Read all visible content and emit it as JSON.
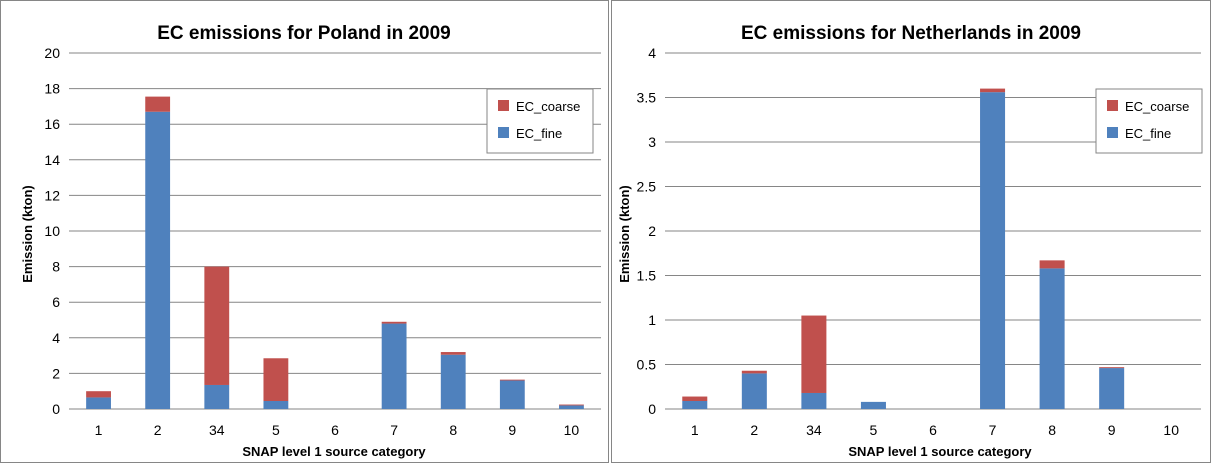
{
  "chart_data": [
    {
      "type": "bar",
      "stacked": true,
      "title": "EC emissions for Poland in 2009",
      "xlabel": "SNAP level 1 source category",
      "ylabel": "Emission (kton)",
      "ylim": [
        0,
        20
      ],
      "yticks": [
        "0",
        "2",
        "4",
        "6",
        "8",
        "10",
        "12",
        "14",
        "16",
        "18",
        "20"
      ],
      "categories": [
        "1",
        "2",
        "34",
        "5",
        "6",
        "7",
        "8",
        "9",
        "10"
      ],
      "grid": true,
      "legend": "top-right",
      "series": [
        {
          "name": "EC_fine",
          "color": "#4f81bd",
          "values": [
            0.65,
            16.7,
            1.35,
            0.45,
            0,
            4.8,
            3.05,
            1.6,
            0.2
          ]
        },
        {
          "name": "EC_coarse",
          "color": "#c0504d",
          "values": [
            0.35,
            0.85,
            6.65,
            2.4,
            0,
            0.1,
            0.15,
            0.05,
            0.05
          ]
        }
      ],
      "legend_order": [
        "EC_coarse",
        "EC_fine"
      ]
    },
    {
      "type": "bar",
      "stacked": true,
      "title": "EC emissions for Netherlands in 2009",
      "xlabel": "SNAP level 1 source category",
      "ylabel": "Emission (kton)",
      "ylim": [
        0,
        4
      ],
      "yticks": [
        "0",
        "0.5",
        "1",
        "1.5",
        "2",
        "2.5",
        "3",
        "3.5",
        "4"
      ],
      "categories": [
        "1",
        "2",
        "34",
        "5",
        "6",
        "7",
        "8",
        "9",
        "10"
      ],
      "grid": true,
      "legend": "top-right",
      "series": [
        {
          "name": "EC_fine",
          "color": "#4f81bd",
          "values": [
            0.09,
            0.4,
            0.18,
            0.08,
            0,
            3.56,
            1.58,
            0.46,
            0
          ]
        },
        {
          "name": "EC_coarse",
          "color": "#c0504d",
          "values": [
            0.05,
            0.03,
            0.87,
            0,
            0,
            0.04,
            0.09,
            0.01,
            0
          ]
        }
      ],
      "legend_order": [
        "EC_coarse",
        "EC_fine"
      ]
    }
  ]
}
